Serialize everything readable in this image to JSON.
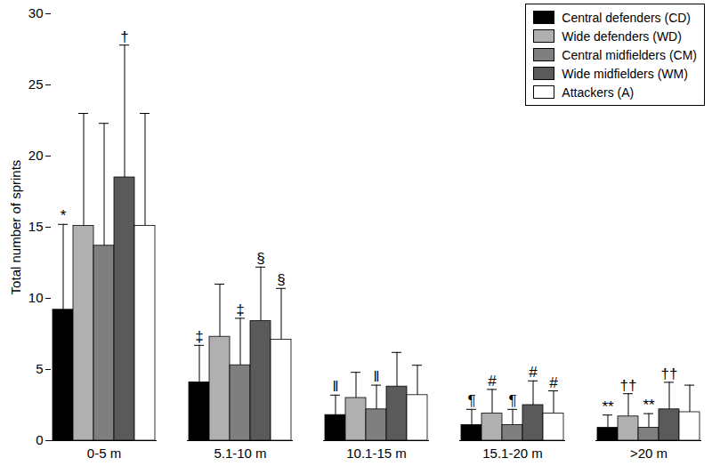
{
  "chart_data": {
    "type": "bar",
    "y_label": "Total number of sprints",
    "categories": [
      "0-5 m",
      "5.1-10 m",
      "10.1-15 m",
      "15.1-20 m",
      ">20 m"
    ],
    "series": [
      {
        "name": "Central defenders (CD)",
        "color": "#000000",
        "values": [
          9.2,
          4.1,
          1.8,
          1.1,
          0.9
        ],
        "errors": [
          6.0,
          2.6,
          1.4,
          1.1,
          0.9
        ]
      },
      {
        "name": "Wide defenders (WD)",
        "color": "#b0b0b0",
        "values": [
          15.1,
          7.3,
          3.0,
          1.9,
          1.7
        ],
        "errors": [
          7.9,
          3.7,
          1.8,
          1.7,
          1.6
        ]
      },
      {
        "name": "Central midfielders (CM)",
        "color": "#7f7f7f",
        "values": [
          13.7,
          5.3,
          2.2,
          1.1,
          0.9
        ],
        "errors": [
          8.6,
          3.3,
          1.7,
          1.1,
          1.0
        ]
      },
      {
        "name": "Wide midfielders (WM)",
        "color": "#5a5a5a",
        "values": [
          18.5,
          8.4,
          3.8,
          2.5,
          2.2
        ],
        "errors": [
          9.3,
          3.8,
          2.4,
          1.7,
          1.9
        ]
      },
      {
        "name": "Attackers (A)",
        "color": "#ffffff",
        "values": [
          15.1,
          7.1,
          3.2,
          1.9,
          2.0
        ],
        "errors": [
          7.9,
          3.6,
          2.1,
          1.6,
          1.9
        ]
      }
    ],
    "annotations": [
      {
        "category": "0-5 m",
        "series": "Central defenders (CD)",
        "text": "*"
      },
      {
        "category": "0-5 m",
        "series": "Wide midfielders (WM)",
        "text": "†"
      },
      {
        "category": "5.1-10 m",
        "series": "Central defenders (CD)",
        "text": "‡"
      },
      {
        "category": "5.1-10 m",
        "series": "Central midfielders (CM)",
        "text": "‡"
      },
      {
        "category": "5.1-10 m",
        "series": "Wide midfielders (WM)",
        "text": "§"
      },
      {
        "category": "5.1-10 m",
        "series": "Attackers (A)",
        "text": "§"
      },
      {
        "category": "10.1-15 m",
        "series": "Central defenders (CD)",
        "text": "‖"
      },
      {
        "category": "10.1-15 m",
        "series": "Central midfielders (CM)",
        "text": "‖"
      },
      {
        "category": "15.1-20 m",
        "series": "Central defenders (CD)",
        "text": "¶"
      },
      {
        "category": "15.1-20 m",
        "series": "Wide defenders (WD)",
        "text": "#"
      },
      {
        "category": "15.1-20 m",
        "series": "Central midfielders (CM)",
        "text": "¶"
      },
      {
        "category": "15.1-20 m",
        "series": "Wide midfielders (WM)",
        "text": "#"
      },
      {
        "category": "15.1-20 m",
        "series": "Attackers (A)",
        "text": "#"
      },
      {
        "category": ">20 m",
        "series": "Central defenders (CD)",
        "text": "**"
      },
      {
        "category": ">20 m",
        "series": "Wide defenders (WD)",
        "text": "††"
      },
      {
        "category": ">20 m",
        "series": "Central midfielders (CM)",
        "text": "**"
      },
      {
        "category": ">20 m",
        "series": "Wide midfielders (WM)",
        "text": "††"
      }
    ],
    "ylim": [
      0,
      30
    ],
    "yticks": [
      0,
      5,
      10,
      15,
      20,
      25,
      30
    ],
    "grid": false,
    "legend": "top-right"
  }
}
